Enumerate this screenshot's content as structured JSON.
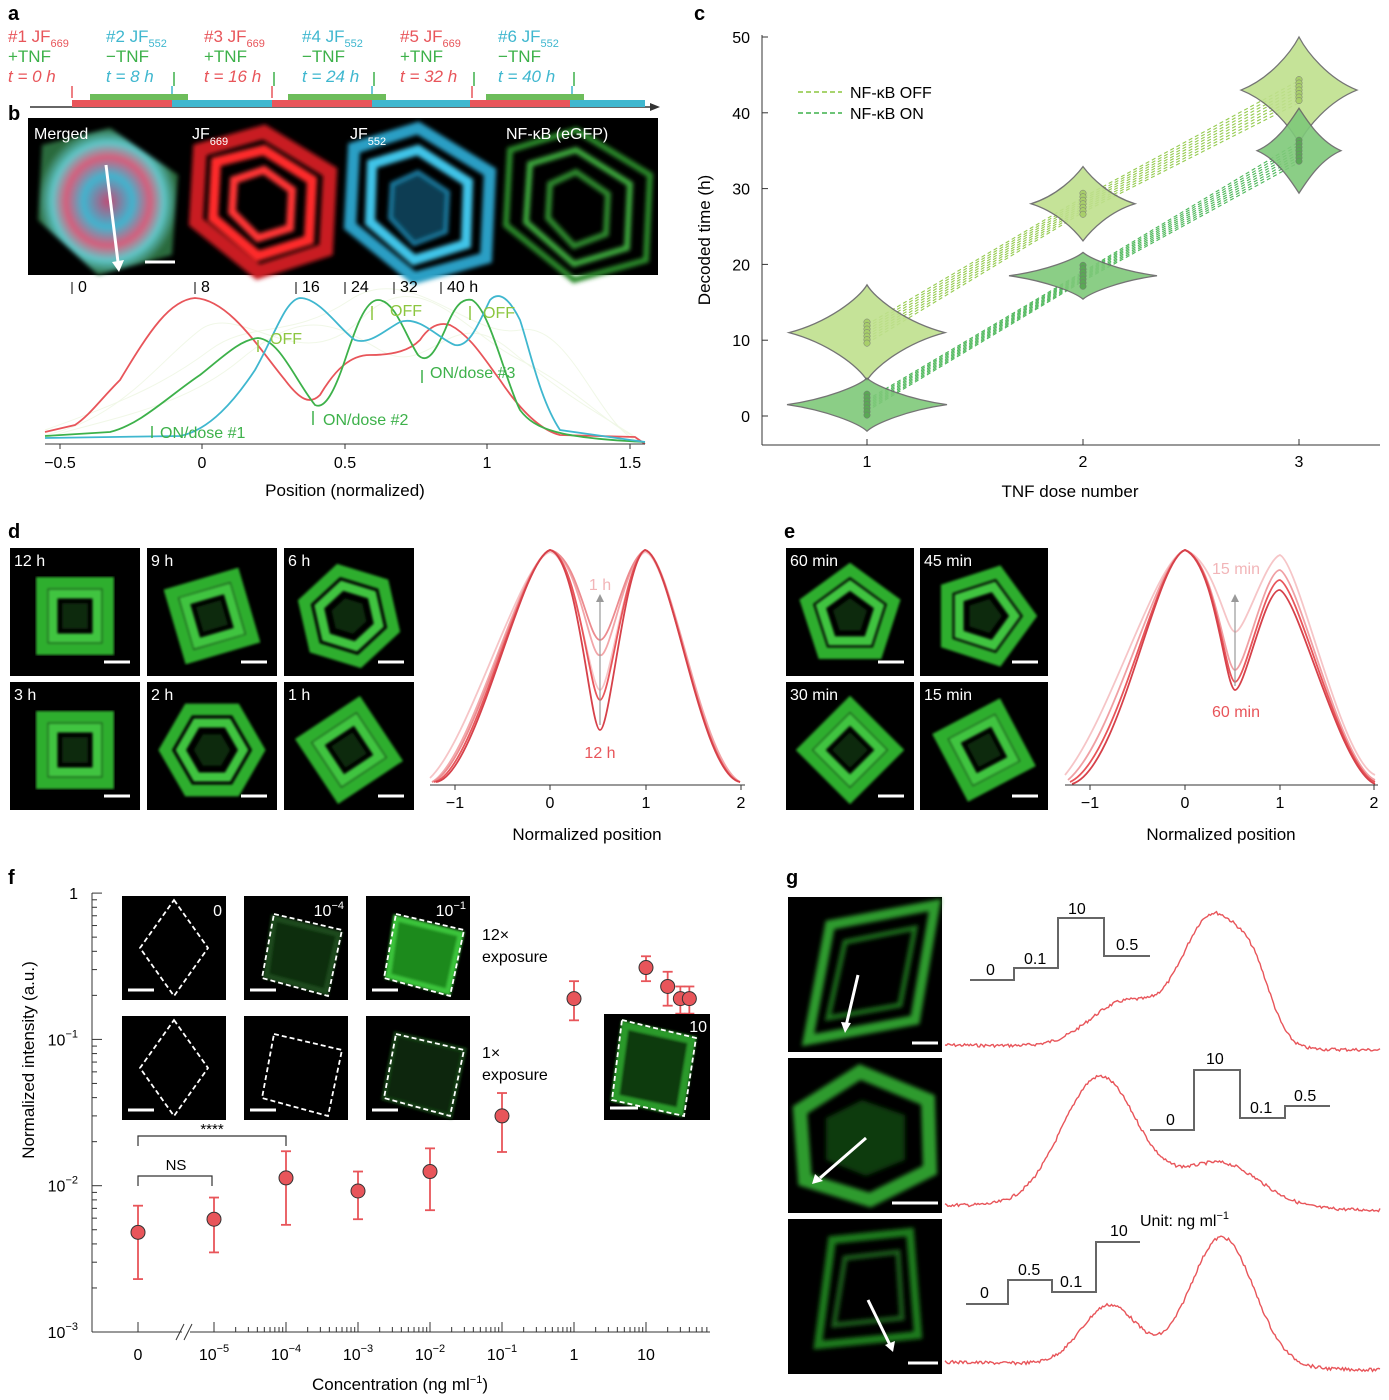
{
  "panels": {
    "a": "a",
    "b": "b",
    "c": "c",
    "d": "d",
    "e": "e",
    "f": "f",
    "g": "g"
  },
  "colors": {
    "red": "#e8555a",
    "cyan": "#3fb7cf",
    "green": "#3db14a",
    "lime": "#8cc63f",
    "grey": "#555555"
  },
  "panel_a": {
    "steps": [
      {
        "num": "#1 JF",
        "sub": "669",
        "cond": "+TNF",
        "time": "t = 0 h",
        "color": "red"
      },
      {
        "num": "#2 JF",
        "sub": "552",
        "cond": "−TNF",
        "time": "t = 8 h",
        "color": "cyan"
      },
      {
        "num": "#3 JF",
        "sub": "669",
        "cond": "+TNF",
        "time": "t = 16 h",
        "color": "red"
      },
      {
        "num": "#4 JF",
        "sub": "552",
        "cond": "−TNF",
        "time": "t = 24 h",
        "color": "cyan"
      },
      {
        "num": "#5 JF",
        "sub": "669",
        "cond": "+TNF",
        "time": "t = 32 h",
        "color": "red"
      },
      {
        "num": "#6 JF",
        "sub": "552",
        "cond": "−TNF",
        "time": "t = 40 h",
        "color": "cyan"
      }
    ]
  },
  "panel_b": {
    "images": [
      "Merged",
      "JF669",
      "JF552",
      "NF-κB (eGFP)"
    ],
    "image_labels": {
      "merged": "Merged",
      "jf669": "JF",
      "jf669_sub": "669",
      "jf552": "JF",
      "jf552_sub": "552",
      "nfkb": "NF-κB (eGFP)"
    },
    "time_marks": [
      "0",
      "8",
      "16",
      "24",
      "32",
      "40 h"
    ],
    "annotations": {
      "off1": "OFF",
      "off2": "OFF",
      "off3": "OFF",
      "on1": "ON/dose #1",
      "on2": "ON/dose #2",
      "on3": "ON/dose #3"
    },
    "xlabel": "Position (normalized)",
    "xticks": [
      "−0.5",
      "0",
      "0.5",
      "1",
      "1.5"
    ]
  },
  "chart_data": [
    {
      "panel": "c",
      "type": "scatter",
      "xlabel": "TNF dose number",
      "ylabel": "Decoded time (h)",
      "xticks": [
        "1",
        "2",
        "3"
      ],
      "yticks": [
        "0",
        "10",
        "20",
        "30",
        "40",
        "50"
      ],
      "ylim": [
        -4,
        52
      ],
      "series": [
        {
          "name": "NF-κB OFF",
          "x": [
            1,
            2,
            3
          ],
          "y": [
            11,
            28,
            43
          ]
        },
        {
          "name": "NF-κB ON",
          "x": [
            1,
            2,
            3
          ],
          "y": [
            1.5,
            18.5,
            35
          ]
        }
      ],
      "legend": "top-left"
    },
    {
      "panel": "f",
      "type": "scatter",
      "xlabel": "Concentration (ng ml",
      "xlabel_sup": "−1",
      "xlabel_end": ")",
      "ylabel": "Normalized intensity (a.u.)",
      "xticks": [
        "0",
        "10",
        "10",
        "10",
        "10",
        "10",
        "1",
        "10"
      ],
      "xtick_sups": [
        "",
        "−5",
        "−4",
        "−3",
        "−2",
        "−1",
        "",
        ""
      ],
      "yticks": [
        "10",
        "10",
        "10",
        "1"
      ],
      "ytick_sups": [
        "−3",
        "−2",
        "−1",
        ""
      ],
      "x": [
        "0",
        "1e-5",
        "1e-4",
        "1e-3",
        "1e-2",
        "1e-1",
        "1",
        "10",
        "20",
        "30",
        "40"
      ],
      "y": [
        0.0048,
        0.0059,
        0.0113,
        0.0092,
        0.0125,
        0.03,
        0.19,
        0.31,
        0.23,
        0.19,
        0.19
      ],
      "err_low": [
        0.0023,
        0.0035,
        0.0054,
        0.0059,
        0.0068,
        0.017,
        0.135,
        0.25,
        0.17,
        0.15,
        0.15
      ],
      "err_high": [
        0.0073,
        0.0083,
        0.0172,
        0.0125,
        0.018,
        0.043,
        0.25,
        0.37,
        0.29,
        0.23,
        0.23
      ]
    }
  ],
  "panel_d": {
    "images": [
      "12 h",
      "9 h",
      "6 h",
      "3 h",
      "2 h",
      "1 h"
    ],
    "xlabel": "Normalized position",
    "xticks": [
      "−1",
      "0",
      "1",
      "2"
    ],
    "label_top": "1 h",
    "label_bottom": "12 h"
  },
  "panel_e": {
    "images": [
      "60 min",
      "45 min",
      "30 min",
      "15 min"
    ],
    "xlabel": "Normalized position",
    "xticks": [
      "−1",
      "0",
      "1",
      "2"
    ],
    "label_top": "15 min",
    "label_bottom": "60 min"
  },
  "panel_f": {
    "inset_top": [
      "0",
      "10",
      "10"
    ],
    "inset_top_sups": [
      "",
      "−4",
      "−1"
    ],
    "inset_extra": "10",
    "exposure_12": [
      "12×",
      "exposure"
    ],
    "exposure_1": [
      "1×",
      "exposure"
    ],
    "sig1": "****",
    "sig2": "NS"
  },
  "panel_g": {
    "steps1": [
      "0",
      "0.1",
      "10",
      "0.5"
    ],
    "steps2": [
      "0",
      "10",
      "0.1",
      "0.5"
    ],
    "steps3": [
      "0",
      "0.5",
      "0.1",
      "10"
    ],
    "unit": "Unit: ng ml",
    "unit_sup": "−1"
  }
}
